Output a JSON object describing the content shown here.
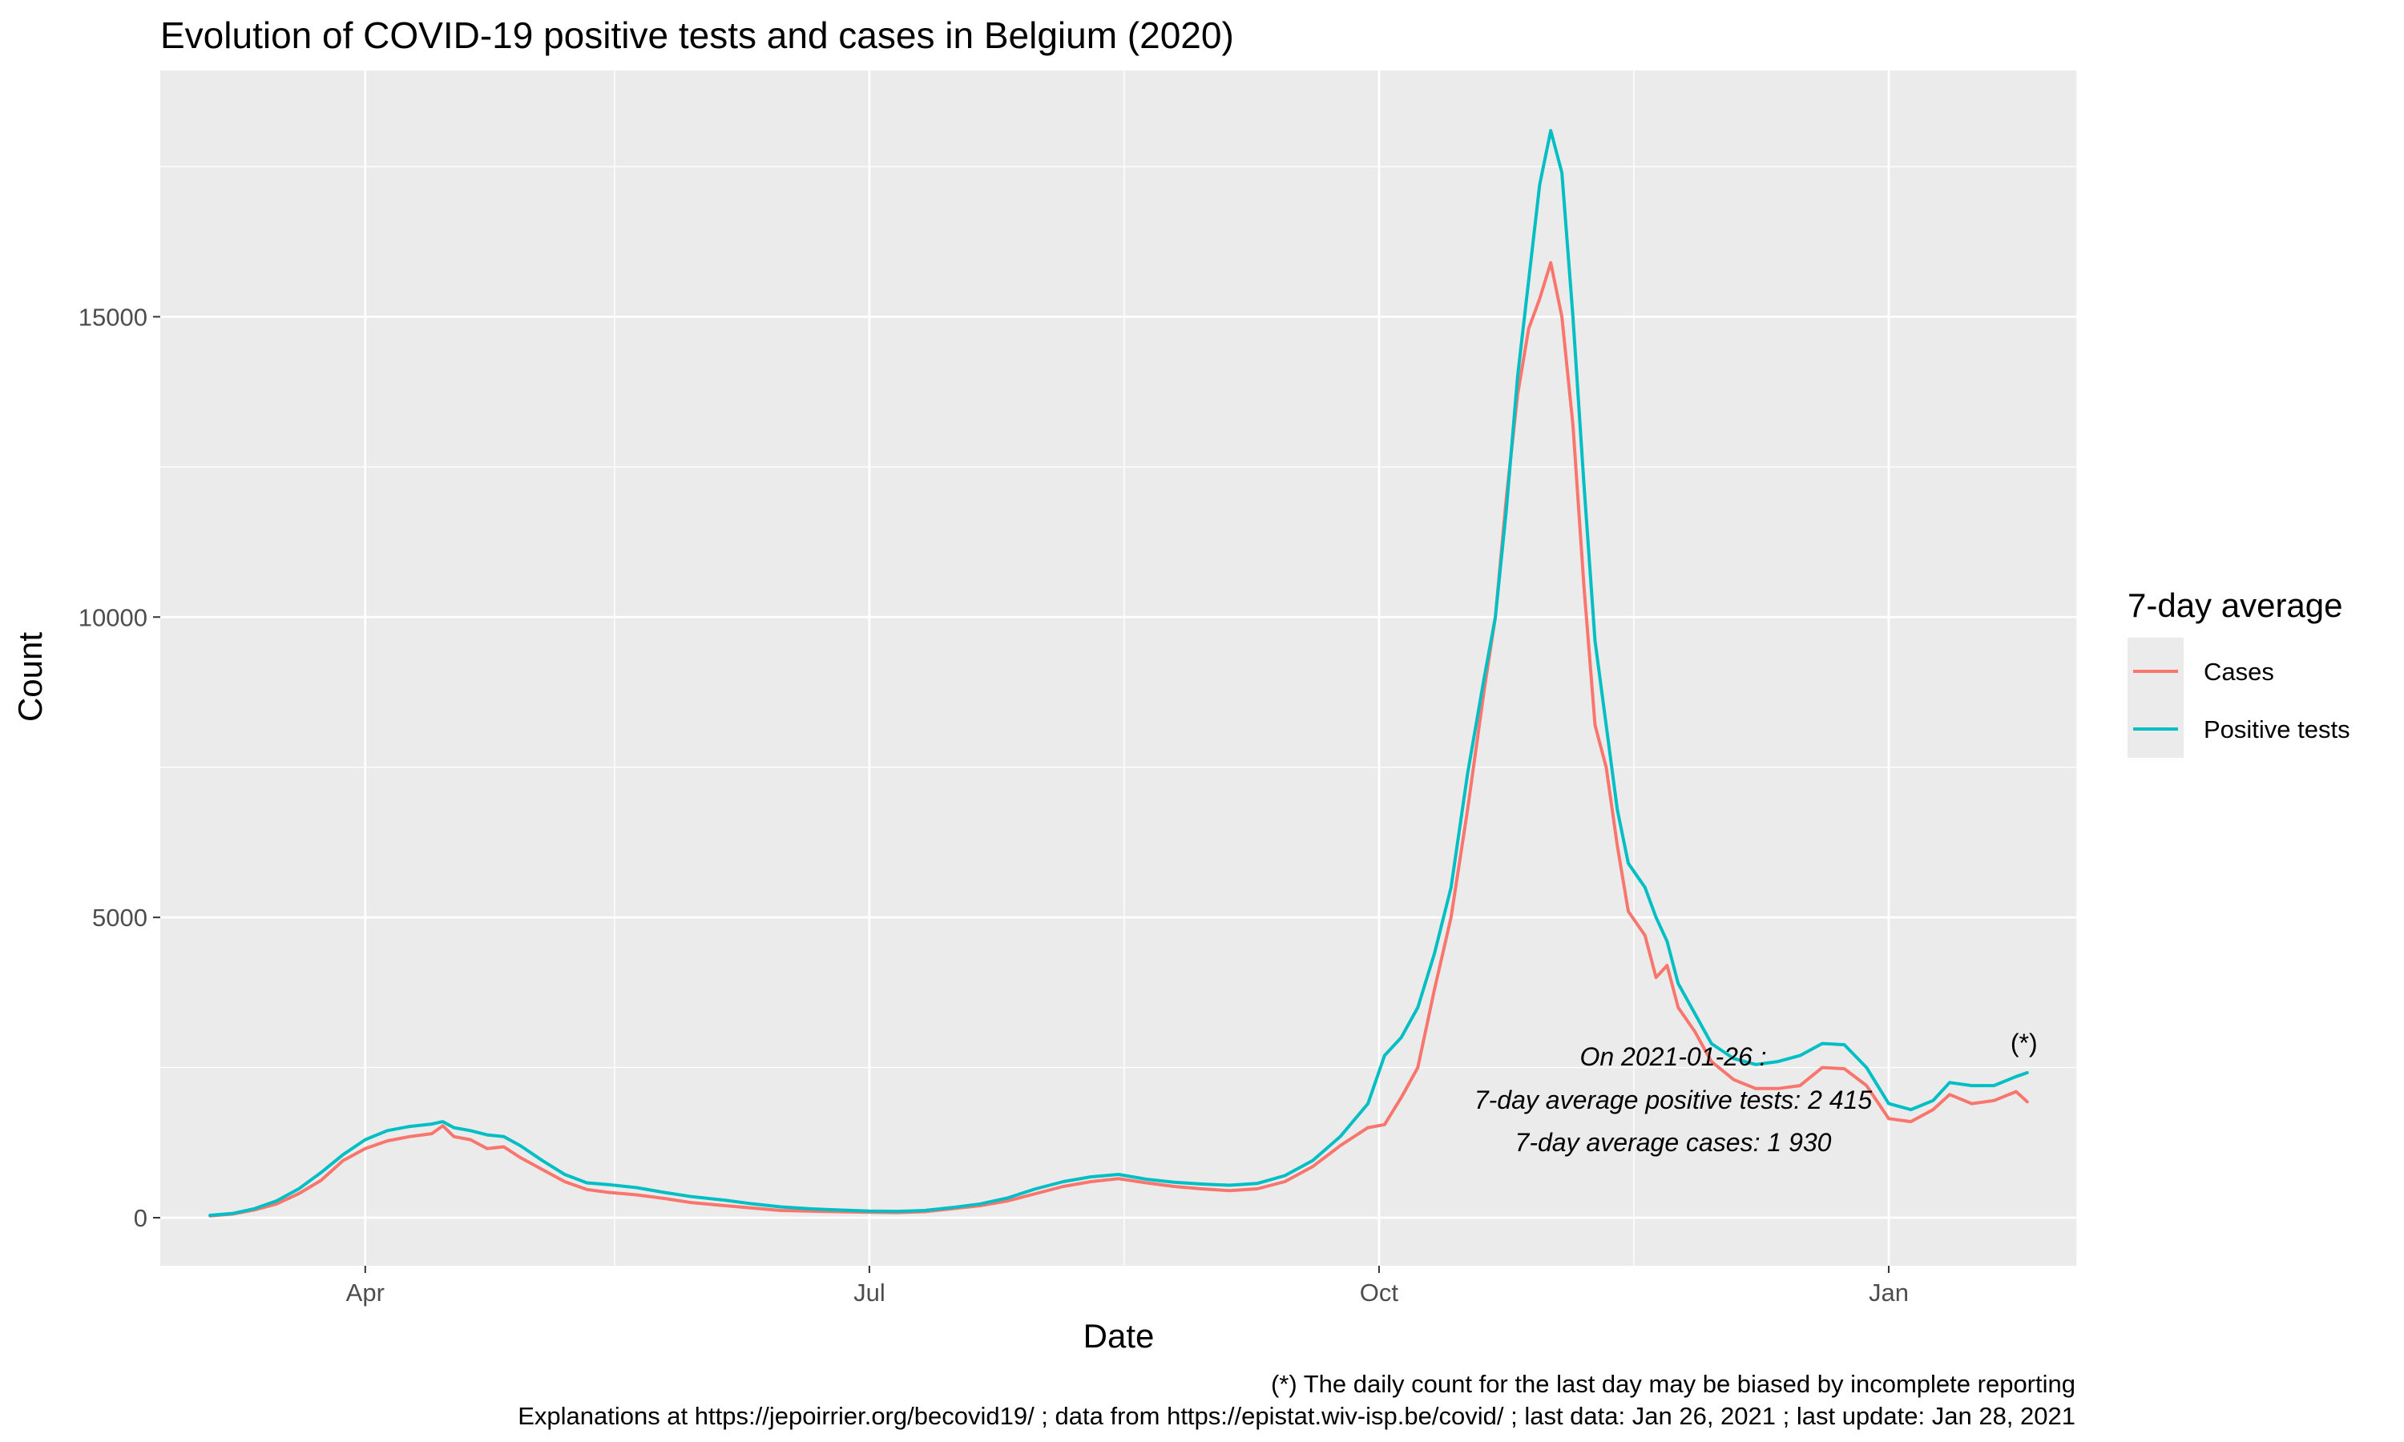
{
  "chart_data": {
    "type": "line",
    "title": "Evolution of COVID-19 positive tests and cases in Belgium (2020)",
    "xlabel": "Date",
    "ylabel": "Count",
    "x_axis": {
      "type": "date",
      "range": [
        "2020-02-24",
        "2021-02-04"
      ]
    },
    "y_range": [
      -800,
      19100
    ],
    "x_ticks": [
      {
        "date": "2020-04-01",
        "label": "Apr"
      },
      {
        "date": "2020-07-01",
        "label": "Jul"
      },
      {
        "date": "2020-10-01",
        "label": "Oct"
      },
      {
        "date": "2021-01-01",
        "label": "Jan"
      }
    ],
    "x_minor_ticks": [
      "2020-05-16",
      "2020-08-16",
      "2020-11-16",
      "2021-02-04"
    ],
    "y_ticks": [
      0,
      5000,
      10000,
      15000
    ],
    "y_minor_ticks": [
      2500,
      7500,
      12500,
      17500
    ],
    "grid": true,
    "legend": {
      "title": "7-day average",
      "placement": "right"
    },
    "colors": {
      "cases": "#F8766D",
      "tests": "#00BFC4",
      "panel": "#EBEBEB",
      "grid": "#FFFFFF"
    },
    "series": [
      {
        "name": "Cases",
        "color": "#F8766D",
        "points": [
          [
            "2020-03-04",
            30
          ],
          [
            "2020-03-08",
            60
          ],
          [
            "2020-03-12",
            130
          ],
          [
            "2020-03-16",
            230
          ],
          [
            "2020-03-20",
            400
          ],
          [
            "2020-03-24",
            620
          ],
          [
            "2020-03-28",
            950
          ],
          [
            "2020-04-01",
            1150
          ],
          [
            "2020-04-05",
            1280
          ],
          [
            "2020-04-09",
            1350
          ],
          [
            "2020-04-13",
            1400
          ],
          [
            "2020-04-15",
            1530
          ],
          [
            "2020-04-17",
            1350
          ],
          [
            "2020-04-20",
            1300
          ],
          [
            "2020-04-23",
            1150
          ],
          [
            "2020-04-26",
            1180
          ],
          [
            "2020-04-29",
            1000
          ],
          [
            "2020-05-03",
            800
          ],
          [
            "2020-05-07",
            600
          ],
          [
            "2020-05-11",
            470
          ],
          [
            "2020-05-15",
            420
          ],
          [
            "2020-05-20",
            380
          ],
          [
            "2020-05-25",
            320
          ],
          [
            "2020-05-30",
            250
          ],
          [
            "2020-06-05",
            200
          ],
          [
            "2020-06-10",
            160
          ],
          [
            "2020-06-15",
            120
          ],
          [
            "2020-06-20",
            110
          ],
          [
            "2020-06-25",
            100
          ],
          [
            "2020-07-01",
            90
          ],
          [
            "2020-07-06",
            85
          ],
          [
            "2020-07-11",
            100
          ],
          [
            "2020-07-16",
            150
          ],
          [
            "2020-07-21",
            200
          ],
          [
            "2020-07-26",
            280
          ],
          [
            "2020-07-31",
            400
          ],
          [
            "2020-08-05",
            520
          ],
          [
            "2020-08-10",
            600
          ],
          [
            "2020-08-15",
            650
          ],
          [
            "2020-08-20",
            580
          ],
          [
            "2020-08-25",
            520
          ],
          [
            "2020-08-30",
            480
          ],
          [
            "2020-09-04",
            450
          ],
          [
            "2020-09-09",
            480
          ],
          [
            "2020-09-14",
            600
          ],
          [
            "2020-09-19",
            850
          ],
          [
            "2020-09-24",
            1200
          ],
          [
            "2020-09-29",
            1500
          ],
          [
            "2020-10-02",
            1550
          ],
          [
            "2020-10-05",
            2000
          ],
          [
            "2020-10-08",
            2500
          ],
          [
            "2020-10-11",
            3800
          ],
          [
            "2020-10-14",
            5000
          ],
          [
            "2020-10-17",
            6800
          ],
          [
            "2020-10-20",
            8800
          ],
          [
            "2020-10-22",
            10000
          ],
          [
            "2020-10-24",
            12000
          ],
          [
            "2020-10-26",
            13700
          ],
          [
            "2020-10-28",
            14800
          ],
          [
            "2020-10-30",
            15300
          ],
          [
            "2020-11-01",
            15900
          ],
          [
            "2020-11-03",
            15000
          ],
          [
            "2020-11-05",
            13200
          ],
          [
            "2020-11-07",
            10500
          ],
          [
            "2020-11-09",
            8200
          ],
          [
            "2020-11-11",
            7500
          ],
          [
            "2020-11-13",
            6200
          ],
          [
            "2020-11-15",
            5100
          ],
          [
            "2020-11-18",
            4700
          ],
          [
            "2020-11-20",
            4000
          ],
          [
            "2020-11-22",
            4200
          ],
          [
            "2020-11-24",
            3500
          ],
          [
            "2020-11-27",
            3100
          ],
          [
            "2020-11-30",
            2600
          ],
          [
            "2020-12-04",
            2300
          ],
          [
            "2020-12-08",
            2150
          ],
          [
            "2020-12-12",
            2150
          ],
          [
            "2020-12-16",
            2200
          ],
          [
            "2020-12-20",
            2500
          ],
          [
            "2020-12-24",
            2480
          ],
          [
            "2020-12-28",
            2200
          ],
          [
            "2021-01-01",
            1650
          ],
          [
            "2021-01-05",
            1600
          ],
          [
            "2021-01-09",
            1800
          ],
          [
            "2021-01-12",
            2050
          ],
          [
            "2021-01-16",
            1900
          ],
          [
            "2021-01-20",
            1950
          ],
          [
            "2021-01-24",
            2100
          ],
          [
            "2021-01-26",
            1930
          ]
        ]
      },
      {
        "name": "Positive tests",
        "color": "#00BFC4",
        "points": [
          [
            "2020-03-04",
            40
          ],
          [
            "2020-03-08",
            70
          ],
          [
            "2020-03-12",
            150
          ],
          [
            "2020-03-16",
            280
          ],
          [
            "2020-03-20",
            480
          ],
          [
            "2020-03-24",
            750
          ],
          [
            "2020-03-28",
            1050
          ],
          [
            "2020-04-01",
            1300
          ],
          [
            "2020-04-05",
            1450
          ],
          [
            "2020-04-09",
            1520
          ],
          [
            "2020-04-13",
            1560
          ],
          [
            "2020-04-15",
            1600
          ],
          [
            "2020-04-17",
            1500
          ],
          [
            "2020-04-20",
            1450
          ],
          [
            "2020-04-23",
            1380
          ],
          [
            "2020-04-26",
            1350
          ],
          [
            "2020-04-29",
            1200
          ],
          [
            "2020-05-03",
            950
          ],
          [
            "2020-05-07",
            720
          ],
          [
            "2020-05-11",
            580
          ],
          [
            "2020-05-15",
            550
          ],
          [
            "2020-05-20",
            500
          ],
          [
            "2020-05-25",
            420
          ],
          [
            "2020-05-30",
            350
          ],
          [
            "2020-06-05",
            290
          ],
          [
            "2020-06-10",
            230
          ],
          [
            "2020-06-15",
            180
          ],
          [
            "2020-06-20",
            150
          ],
          [
            "2020-06-25",
            130
          ],
          [
            "2020-07-01",
            110
          ],
          [
            "2020-07-06",
            105
          ],
          [
            "2020-07-11",
            120
          ],
          [
            "2020-07-16",
            170
          ],
          [
            "2020-07-21",
            230
          ],
          [
            "2020-07-26",
            330
          ],
          [
            "2020-07-31",
            480
          ],
          [
            "2020-08-05",
            600
          ],
          [
            "2020-08-10",
            680
          ],
          [
            "2020-08-15",
            720
          ],
          [
            "2020-08-20",
            640
          ],
          [
            "2020-08-25",
            590
          ],
          [
            "2020-08-30",
            560
          ],
          [
            "2020-09-04",
            540
          ],
          [
            "2020-09-09",
            570
          ],
          [
            "2020-09-14",
            700
          ],
          [
            "2020-09-19",
            950
          ],
          [
            "2020-09-24",
            1350
          ],
          [
            "2020-09-29",
            1900
          ],
          [
            "2020-10-02",
            2700
          ],
          [
            "2020-10-05",
            3000
          ],
          [
            "2020-10-08",
            3500
          ],
          [
            "2020-10-11",
            4400
          ],
          [
            "2020-10-14",
            5500
          ],
          [
            "2020-10-17",
            7400
          ],
          [
            "2020-10-20",
            9000
          ],
          [
            "2020-10-22",
            10000
          ],
          [
            "2020-10-24",
            11800
          ],
          [
            "2020-10-26",
            14000
          ],
          [
            "2020-10-28",
            15600
          ],
          [
            "2020-10-30",
            17200
          ],
          [
            "2020-11-01",
            18100
          ],
          [
            "2020-11-03",
            17400
          ],
          [
            "2020-11-05",
            15000
          ],
          [
            "2020-11-07",
            12200
          ],
          [
            "2020-11-09",
            9600
          ],
          [
            "2020-11-11",
            8200
          ],
          [
            "2020-11-13",
            6800
          ],
          [
            "2020-11-15",
            5900
          ],
          [
            "2020-11-18",
            5500
          ],
          [
            "2020-11-20",
            5000
          ],
          [
            "2020-11-22",
            4600
          ],
          [
            "2020-11-24",
            3900
          ],
          [
            "2020-11-27",
            3400
          ],
          [
            "2020-11-30",
            2900
          ],
          [
            "2020-12-04",
            2650
          ],
          [
            "2020-12-08",
            2550
          ],
          [
            "2020-12-12",
            2600
          ],
          [
            "2020-12-16",
            2700
          ],
          [
            "2020-12-20",
            2900
          ],
          [
            "2020-12-24",
            2880
          ],
          [
            "2020-12-28",
            2500
          ],
          [
            "2021-01-01",
            1900
          ],
          [
            "2021-01-05",
            1800
          ],
          [
            "2021-01-09",
            1950
          ],
          [
            "2021-01-12",
            2250
          ],
          [
            "2021-01-16",
            2200
          ],
          [
            "2021-01-20",
            2200
          ],
          [
            "2021-01-24",
            2350
          ],
          [
            "2021-01-26",
            2415
          ]
        ]
      }
    ],
    "annotations": {
      "asterisk": "(*)",
      "lines": [
        "On 2021-01-26 :",
        "7-day average positive tests: 2 415",
        "7-day average cases: 1 930"
      ]
    },
    "caption": {
      "line1": "(*) The daily count for the last day may be biased by incomplete reporting",
      "line2": "Explanations at https://jepoirrier.org/becovid19/ ; data from https://epistat.wiv-isp.be/covid/ ; last data: Jan 26, 2021  ; last update: Jan 28, 2021"
    }
  }
}
